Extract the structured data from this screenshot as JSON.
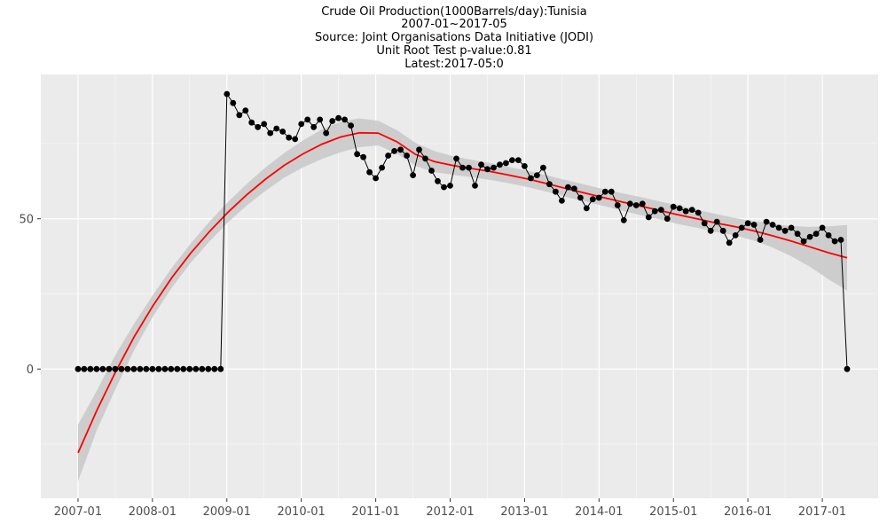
{
  "titles": [
    "Crude Oil Production(1000Barrels/day):Tunisia",
    "2007-01~2017-05",
    "Source: Joint Organisations Data Initiative (JODI)",
    "Unit Root Test p-value:0.81",
    "Latest:2017-05:0"
  ],
  "colors": {
    "panel": "#ebebeb",
    "grid": "#ffffff",
    "points": "#000000",
    "line": "#000000",
    "trend": "#ff0000",
    "band": "#c8c8c8"
  },
  "chart_data": {
    "type": "line",
    "title": "Crude Oil Production(1000Barrels/day):Tunisia",
    "xlabel": "",
    "ylabel": "",
    "x_start": "2007-01",
    "x_end": "2017-05",
    "xlim": [
      "2006-07",
      "2017-10"
    ],
    "ylim": [
      -43,
      98
    ],
    "x_ticks": [
      "2007-01",
      "2008-01",
      "2009-01",
      "2010-01",
      "2011-01",
      "2012-01",
      "2013-01",
      "2014-01",
      "2015-01",
      "2016-01",
      "2017-01"
    ],
    "y_ticks": [
      0,
      50
    ],
    "grid": true,
    "series": [
      {
        "kind": "points+line",
        "values": [
          0,
          0,
          0,
          0,
          0,
          0,
          0,
          0,
          0,
          0,
          0,
          0,
          0,
          0,
          0,
          0,
          0,
          0,
          0,
          0,
          0,
          0,
          0,
          0,
          91.5,
          88.5,
          84.5,
          86,
          82,
          80.5,
          81.5,
          78.5,
          80,
          79,
          77,
          76.5,
          81.5,
          83,
          80.5,
          83,
          78.5,
          82.5,
          83.5,
          83,
          81,
          71.5,
          70.5,
          65.5,
          63.5,
          67,
          71,
          72.5,
          73,
          71,
          64.5,
          73,
          70,
          66,
          62.5,
          60.5,
          61,
          70,
          67,
          67,
          61,
          68,
          66.5,
          67,
          68,
          68.5,
          69.5,
          69.5,
          67.5,
          63.5,
          64.5,
          67,
          61.5,
          59,
          56,
          60.5,
          60,
          57,
          53.5,
          56.5,
          57,
          59,
          59,
          54.5,
          49.5,
          55,
          54.5,
          55,
          50.5,
          52.5,
          53,
          50,
          54,
          53.5,
          52.5,
          53,
          52,
          48.5,
          46,
          49,
          46,
          42,
          44.5,
          47,
          48.5,
          48,
          43,
          49,
          48,
          47,
          46,
          47,
          45,
          42.5,
          44,
          45,
          47,
          44.5,
          42.5,
          43,
          0
        ]
      },
      {
        "kind": "smooth-trend",
        "values": [
          -27.9,
          -13.8,
          -0.9,
          10.8,
          21.1,
          30.4,
          38.5,
          45.7,
          52.2,
          58.0,
          63.2,
          67.8,
          71.6,
          74.8,
          77.2,
          78.6,
          78.5,
          75.6,
          71.4,
          69.0,
          67.7,
          66.7,
          65.7,
          64.5,
          63.2,
          61.7,
          60.1,
          58.6,
          57.1,
          55.6,
          54.2,
          52.8,
          51.3,
          50.0,
          48.6,
          47.4,
          46.0,
          44.4,
          42.6,
          40.7,
          38.7,
          37.0
        ]
      }
    ],
    "confidence_band": {
      "upper": [
        -18.5,
        -7.2,
        4.8,
        15.2,
        24.7,
        33.7,
        41.7,
        49.0,
        55.6,
        61.6,
        67.1,
        71.9,
        76.1,
        79.7,
        82.3,
        83.4,
        82.6,
        79.5,
        75.2,
        72.5,
        70.8,
        69.6,
        68.5,
        67.2,
        65.9,
        64.4,
        62.9,
        61.4,
        59.9,
        58.5,
        57.2,
        55.8,
        54.4,
        53.0,
        51.6,
        50.3,
        49.2,
        48.3,
        47.6,
        47.3,
        47.5,
        47.9
      ],
      "lower": [
        -37.3,
        -20.4,
        -6.6,
        6.4,
        17.5,
        27.1,
        35.3,
        42.4,
        48.8,
        54.4,
        59.3,
        63.7,
        67.1,
        69.9,
        72.1,
        73.8,
        74.4,
        71.7,
        67.6,
        65.5,
        64.6,
        63.8,
        62.9,
        61.8,
        60.5,
        59.0,
        57.3,
        55.8,
        54.3,
        52.7,
        51.2,
        49.8,
        48.2,
        47.0,
        45.6,
        44.5,
        42.8,
        40.5,
        37.6,
        34.1,
        29.9,
        26.1
      ]
    }
  }
}
